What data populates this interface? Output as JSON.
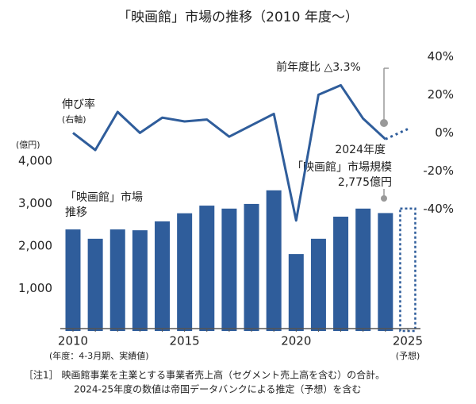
{
  "chart_data": {
    "type": "bar-line",
    "title": "「映画館」市場の推移（2010 年度～）",
    "categories": [
      "2010",
      null,
      null,
      null,
      null,
      "2015",
      null,
      null,
      null,
      null,
      "2020",
      null,
      null,
      null,
      null,
      "2025"
    ],
    "x_note": "(年度：4-3月期、実績値)",
    "forecast_note": "(予想)",
    "y_unit": "(億円)",
    "series": [
      {
        "name": [
          "「映画館」市場",
          "推移"
        ],
        "type": "bar",
        "color": "#2f5d9b",
        "values": [
          2390,
          2170,
          2390,
          2370,
          2580,
          2770,
          2950,
          2880,
          2990,
          3310,
          1810,
          2170,
          2690,
          2880,
          2775,
          2880
        ],
        "dashed_last": true
      },
      {
        "name": [
          "伸び率",
          "(右軸)"
        ],
        "type": "line",
        "axis": "y2",
        "color": "#2f5d9b",
        "values": [
          0,
          -9,
          11,
          0,
          8,
          6,
          7,
          -2,
          4,
          10,
          -46,
          20,
          25,
          7.5,
          -3.3,
          2
        ],
        "dashed_last": true
      }
    ],
    "ylim": [
      0,
      6500
    ],
    "yticks": [
      {
        "value": 1000,
        "label": "1,000"
      },
      {
        "value": 2000,
        "label": "2,000"
      },
      {
        "value": 3000,
        "label": "3,000"
      },
      {
        "value": 4000,
        "label": "4,000"
      }
    ],
    "y2lim": [
      -104,
      41
    ],
    "y2ticks": [
      {
        "value": 40,
        "label": "40%"
      },
      {
        "value": 20,
        "label": "20%"
      },
      {
        "value": 0,
        "label": "0%"
      },
      {
        "value": -20,
        "label": "-20%"
      },
      {
        "value": -40,
        "label": "-40%"
      }
    ],
    "annotations": [
      {
        "text": [
          "前年度比 △3.3%"
        ]
      },
      {
        "text": [
          "2024年度",
          "「映画館」市場規模",
          "2,775億円"
        ]
      }
    ],
    "footnote": [
      "［注1］ 映画館事業を主業とする事業者売上高（セグメント売上高を含む）の合計。",
      "2024-25年度の数値は帝国データバンクによる推定（予想）を含む"
    ]
  }
}
